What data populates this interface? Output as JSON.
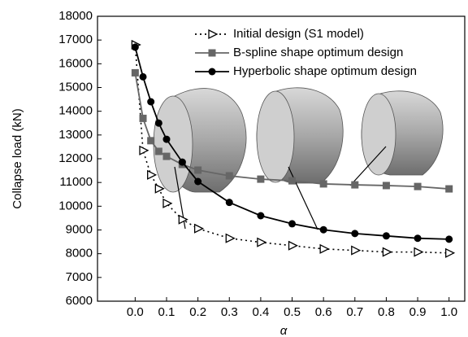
{
  "chart_data": {
    "type": "line",
    "x_label": "α",
    "y_label": "Collapse load (kN)",
    "xlim": [
      -0.12,
      1.05
    ],
    "ylim": [
      6000,
      18000
    ],
    "xticks": [
      {
        "value": 0,
        "label": "0.0"
      },
      0.1,
      0.2,
      0.3,
      0.4,
      0.5,
      0.6,
      0.7,
      0.8,
      0.9,
      {
        "value": 1,
        "label": "1.0"
      }
    ],
    "yticks": [
      6000,
      7000,
      8000,
      9000,
      10000,
      11000,
      12000,
      13000,
      14000,
      15000,
      16000,
      17000,
      18000
    ],
    "legend": "top-right",
    "x": [
      0,
      0.025,
      0.05,
      0.075,
      0.1,
      0.15,
      0.2,
      0.3,
      0.4,
      0.5,
      0.6,
      0.7,
      0.8,
      0.9,
      1.0
    ],
    "series": [
      {
        "name": "Initial design (S1 model)",
        "color": "#000000",
        "line_style": "dotted",
        "marker": "open-triangle",
        "values": [
          16800,
          12350,
          11320,
          10740,
          10120,
          9440,
          9060,
          8650,
          8480,
          8340,
          8200,
          8140,
          8070,
          8070,
          8030
        ]
      },
      {
        "name": "B-spline shape optimum design",
        "color": "#666666",
        "line_style": "solid",
        "marker": "square",
        "values": [
          15620,
          13700,
          12760,
          12310,
          12100,
          11760,
          11520,
          11280,
          11140,
          11070,
          10940,
          10900,
          10870,
          10830,
          10730
        ]
      },
      {
        "name": "Hyperbolic shape optimum design",
        "color": "#000000",
        "line_style": "solid",
        "marker": "circle",
        "values": [
          16700,
          15450,
          14400,
          13500,
          12820,
          11860,
          11040,
          10160,
          9600,
          9260,
          9010,
          8850,
          8750,
          8650,
          8610
        ]
      }
    ]
  }
}
